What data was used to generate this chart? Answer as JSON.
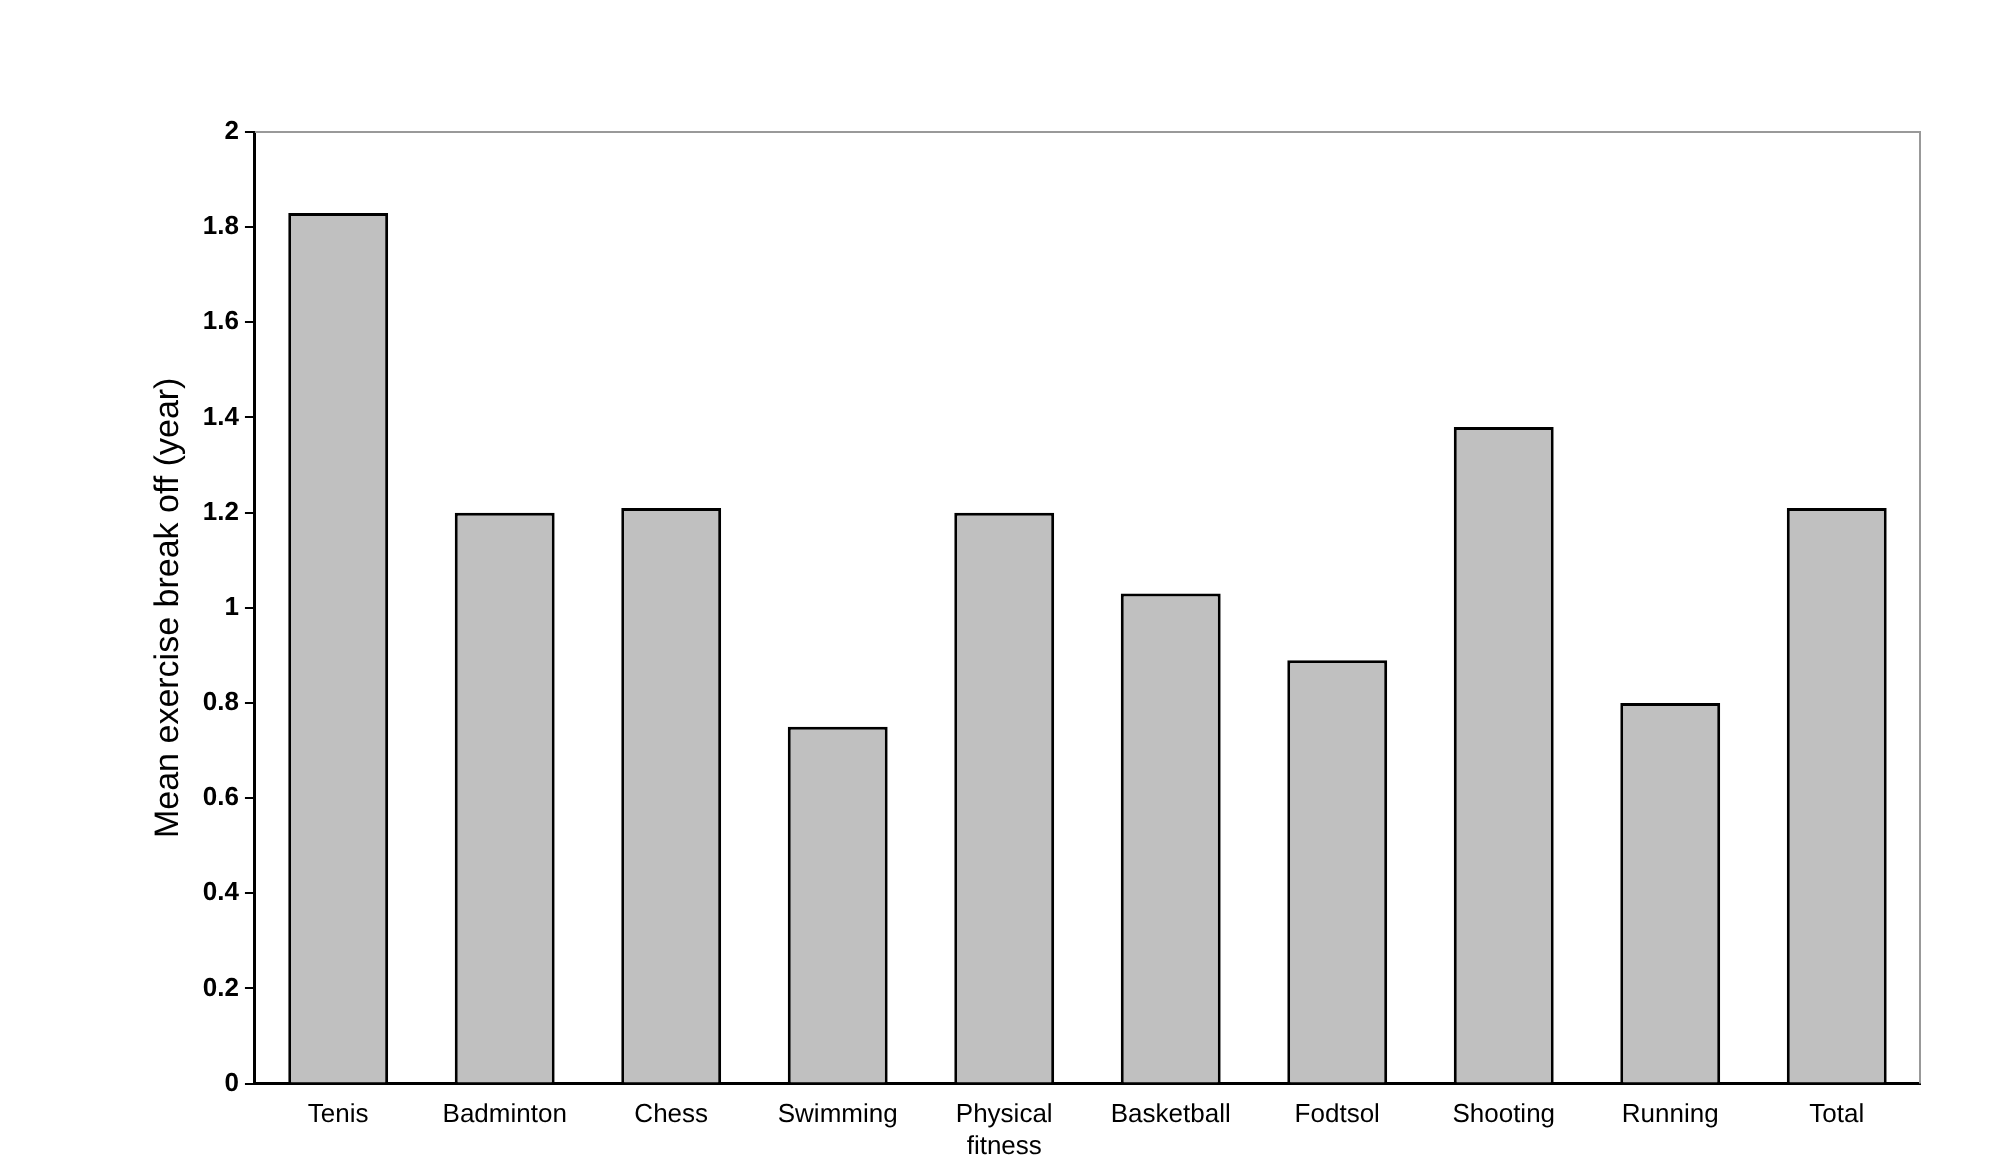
{
  "chart_data": {
    "type": "bar",
    "ylabel": "Mean exercise break off (year)",
    "categories": [
      "Tenis",
      "Badminton",
      "Chess",
      "Swimming",
      "Physical fitness",
      "Basketball",
      "Fodtsol",
      "Shooting",
      "Running",
      "Total"
    ],
    "values": [
      1.83,
      1.2,
      1.21,
      0.75,
      1.2,
      1.03,
      0.89,
      1.38,
      0.8,
      1.21
    ],
    "color": "#c0c0c0",
    "ylim": [
      0,
      2
    ],
    "yticks": [
      0,
      0.2,
      0.4,
      0.6,
      0.8,
      1,
      1.2,
      1.4,
      1.6,
      1.8,
      2
    ],
    "grid": false,
    "legend": false
  }
}
